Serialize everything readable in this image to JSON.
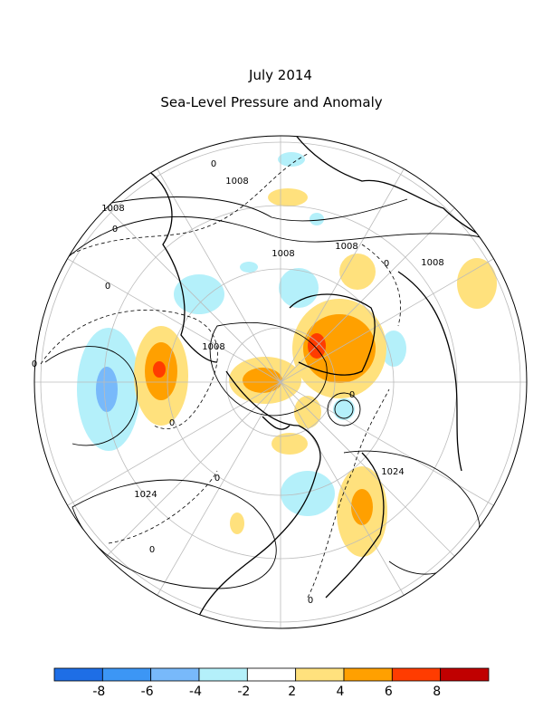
{
  "header": {
    "title": "July 2014",
    "subtitle": "Sea-Level Pressure and Anomaly"
  },
  "contour_labels": [
    "1008",
    "1008",
    "1008",
    "1008",
    "1008",
    "1008",
    "1024",
    "1024",
    "0",
    "0",
    "0",
    "0",
    "0",
    "0",
    "0",
    "0",
    "0",
    "0"
  ],
  "colorbar": {
    "colors": [
      "#1e6ee6",
      "#3c96f5",
      "#78b9fa",
      "#b4f0fa",
      "#ffffff",
      "#ffe17d",
      "#ffa000",
      "#ff3c00",
      "#c00000"
    ],
    "ticks": [
      -8,
      -6,
      -4,
      -2,
      2,
      4,
      6,
      8
    ]
  }
}
